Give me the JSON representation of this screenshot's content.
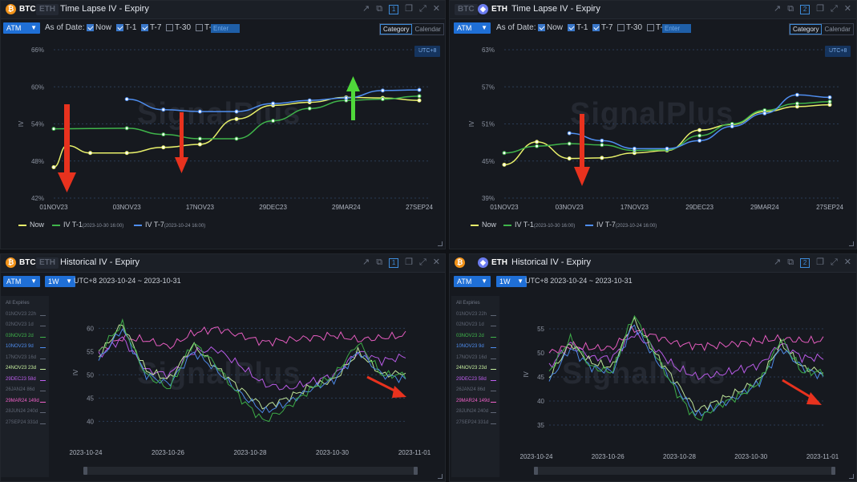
{
  "panels": {
    "tl": {
      "coin_active": "BTC",
      "coin_inactive": "ETH",
      "title": "Time Lapse IV - Expiry",
      "window_num": "1"
    },
    "tr": {
      "coin_inactive": "BTC",
      "coin_active": "ETH",
      "title": "Time Lapse IV - Expiry",
      "window_num": "2"
    },
    "bl": {
      "coin_active": "BTC",
      "coin_inactive": "ETH",
      "title": "Historical IV - Expiry",
      "window_num": "1"
    },
    "br": {
      "coin_active": "ETH",
      "coin_inactive": "",
      "title": "Historical IV - Expiry",
      "window_num": "2"
    }
  },
  "controls": {
    "atm": "ATM",
    "as_of_date": "As of Date:",
    "checks": [
      {
        "label": "Now",
        "checked": true
      },
      {
        "label": "T-1",
        "checked": true
      },
      {
        "label": "T-7",
        "checked": true
      },
      {
        "label": "T-30",
        "checked": false
      },
      {
        "label": "T-",
        "checked": false
      }
    ],
    "enter": "Enter",
    "category": "Category",
    "calendar": "Calendar",
    "period": "1W",
    "range": "UTC+8 2023-10-24 ~ 2023-10-31"
  },
  "utc_badge": "UTC+8",
  "watermark": "SignalPlus",
  "ylabel": "IV",
  "legend": [
    {
      "label": "Now",
      "sub": "",
      "color": "#e8f06a"
    },
    {
      "label": "IV T-1",
      "sub": "(2023-10-30 16:00)",
      "color": "#3fb44a"
    },
    {
      "label": "IV T-7",
      "sub": "(2023-10-24 16:00)",
      "color": "#4f8ef0"
    }
  ],
  "sidebar_items": [
    {
      "label": "All Expiries",
      "color": "#6f7685"
    },
    {
      "label": "01NOV23 22h",
      "color": "#5f6674"
    },
    {
      "label": "02NOV23 1d",
      "color": "#5f6674"
    },
    {
      "label": "03NOV23 2d",
      "color": "#3fb44a"
    },
    {
      "label": "10NOV23 9d",
      "color": "#4f8ef0"
    },
    {
      "label": "17NOV23 16d",
      "color": "#5f6674"
    },
    {
      "label": "24NOV23 23d",
      "color": "#c8f0a0"
    },
    {
      "label": "29DEC23 58d",
      "color": "#c05ef0"
    },
    {
      "label": "26JAN24 86d",
      "color": "#5f6674"
    },
    {
      "label": "29MAR24 149d",
      "color": "#f060c8"
    },
    {
      "label": "28JUN24 240d",
      "color": "#5f6674"
    },
    {
      "label": "27SEP24 331d",
      "color": "#5f6674"
    }
  ],
  "chart_data": [
    {
      "type": "line",
      "panel": "BTC Time Lapse IV - Expiry",
      "categories": [
        "01NOV23",
        "03NOV23",
        "17NOV23",
        "29DEC23",
        "29MAR24",
        "27SEP24"
      ],
      "y_ticks": [
        "42%",
        "48%",
        "54%",
        "60%",
        "66%"
      ],
      "ylim": [
        42,
        66
      ],
      "ylabel": "IV",
      "series": [
        {
          "name": "Now",
          "color": "#e8f06a",
          "x": [
            0,
            0.18,
            0.5,
            1,
            1.5,
            2,
            2.5,
            3,
            3.5,
            4,
            4.5,
            5
          ],
          "values": [
            47,
            50.5,
            49.3,
            49.3,
            50.2,
            50.7,
            54.8,
            57,
            57.5,
            58.3,
            58.2,
            57.8
          ]
        },
        {
          "name": "IV T-1",
          "color": "#3fb44a",
          "x": [
            0,
            1,
            1.5,
            2,
            2.5,
            3,
            3.5,
            4,
            4.5,
            5
          ],
          "values": [
            53.2,
            53.3,
            52.3,
            51.6,
            51.6,
            54.5,
            56.5,
            57.8,
            58,
            58.5
          ]
        },
        {
          "name": "IV T-7",
          "color": "#4f8ef0",
          "x": [
            1,
            1.5,
            2,
            2.5,
            3,
            3.5,
            4,
            4.5,
            5
          ],
          "values": [
            58,
            56.3,
            56,
            56,
            57.3,
            57.8,
            58.2,
            59.4,
            59.5
          ]
        }
      ]
    },
    {
      "type": "line",
      "panel": "ETH Time Lapse IV - Expiry",
      "categories": [
        "01NOV23",
        "03NOV23",
        "17NOV23",
        "29DEC23",
        "29MAR24",
        "27SEP24"
      ],
      "y_ticks": [
        "39%",
        "45%",
        "51%",
        "57%",
        "63%"
      ],
      "ylim": [
        39,
        63
      ],
      "ylabel": "IV",
      "series": [
        {
          "name": "Now",
          "color": "#e8f06a",
          "x": [
            0,
            0.5,
            1,
            1.5,
            2,
            2.5,
            3,
            3.5,
            4,
            4.5,
            5
          ],
          "values": [
            44.4,
            48.1,
            45.4,
            45.5,
            46.3,
            46.7,
            50,
            50.9,
            53,
            53.8,
            54.1
          ]
        },
        {
          "name": "IV T-1",
          "color": "#3fb44a",
          "x": [
            0,
            0.5,
            1,
            1.5,
            2,
            2.5,
            3,
            3.5,
            4,
            4.5,
            5
          ],
          "values": [
            46.3,
            47.4,
            47.8,
            47.6,
            46.7,
            46.8,
            49.1,
            51,
            53.2,
            54.3,
            54.6
          ]
        },
        {
          "name": "IV T-7",
          "color": "#4f8ef0",
          "x": [
            1,
            1.5,
            2,
            2.5,
            3,
            3.5,
            4,
            4.5,
            5
          ],
          "values": [
            49.5,
            48.3,
            47,
            47,
            48.3,
            50.6,
            52.7,
            55.7,
            55.3
          ]
        }
      ]
    },
    {
      "type": "line",
      "panel": "BTC Historical IV - Expiry",
      "x_ticks": [
        "2023-10-24",
        "2023-10-26",
        "2023-10-28",
        "2023-10-30",
        "2023-11-01"
      ],
      "y_ticks": [
        "40",
        "45",
        "50",
        "55",
        "60"
      ],
      "ylim": [
        38,
        63
      ],
      "ylabel": "IV",
      "series": [
        {
          "name": "29MAR24 149d",
          "color": "#f060c8",
          "values": [
            55,
            58,
            57.5,
            56,
            59,
            60,
            58.5,
            57,
            57.5,
            58,
            58.5,
            57.5,
            58,
            58.5
          ]
        },
        {
          "name": "29DEC23 58d",
          "color": "#c05ef0",
          "values": [
            54,
            58,
            51,
            50,
            55,
            55.5,
            52,
            48,
            47,
            48.5,
            50,
            55,
            53,
            54
          ]
        },
        {
          "name": "24NOV23 23d",
          "color": "#c8f0a0",
          "values": [
            54,
            61,
            51,
            49,
            56.5,
            51.5,
            47,
            43,
            45,
            47.5,
            49,
            55,
            50,
            50.5
          ]
        },
        {
          "name": "10NOV23 9d",
          "color": "#4f8ef0",
          "values": [
            53,
            60,
            50,
            48,
            55,
            51,
            46,
            42,
            44,
            47,
            49,
            55,
            50,
            49
          ]
        },
        {
          "name": "03NOV23 2d",
          "color": "#3fb44a",
          "values": [
            55,
            61,
            50,
            47,
            57,
            52,
            45,
            40,
            43,
            47,
            50,
            57,
            50,
            50
          ]
        }
      ]
    },
    {
      "type": "line",
      "panel": "ETH Historical IV - Expiry",
      "x_ticks": [
        "2023-10-24",
        "2023-10-26",
        "2023-10-28",
        "2023-10-30",
        "2023-11-01"
      ],
      "y_ticks": [
        "35",
        "40",
        "45",
        "50",
        "55"
      ],
      "ylim": [
        33,
        58
      ],
      "ylabel": "IV",
      "series": [
        {
          "name": "29MAR24 149d",
          "color": "#f060c8",
          "values": [
            50,
            51.5,
            51,
            51,
            55,
            53.5,
            52,
            51.5,
            51.5,
            52,
            52.5,
            53,
            52.5,
            52.5
          ]
        },
        {
          "name": "29DEC23 58d",
          "color": "#c05ef0",
          "values": [
            47,
            52,
            49,
            49,
            54,
            51,
            47,
            45,
            45.5,
            46.5,
            47.5,
            52,
            49,
            49
          ]
        },
        {
          "name": "24NOV23 23d",
          "color": "#c8f0a0",
          "values": [
            45,
            52,
            48,
            47,
            57,
            50,
            44,
            38,
            40,
            42,
            44.5,
            52,
            47,
            46
          ]
        },
        {
          "name": "10NOV23 9d",
          "color": "#4f8ef0",
          "values": [
            44,
            51,
            47,
            46,
            56,
            49,
            43,
            37,
            39,
            41,
            44,
            51,
            47,
            45
          ]
        },
        {
          "name": "03NOV23 2d",
          "color": "#3fb44a",
          "values": [
            46,
            53,
            47,
            46,
            58,
            50,
            42,
            36,
            39,
            41,
            44,
            53,
            46,
            46
          ]
        }
      ]
    }
  ]
}
